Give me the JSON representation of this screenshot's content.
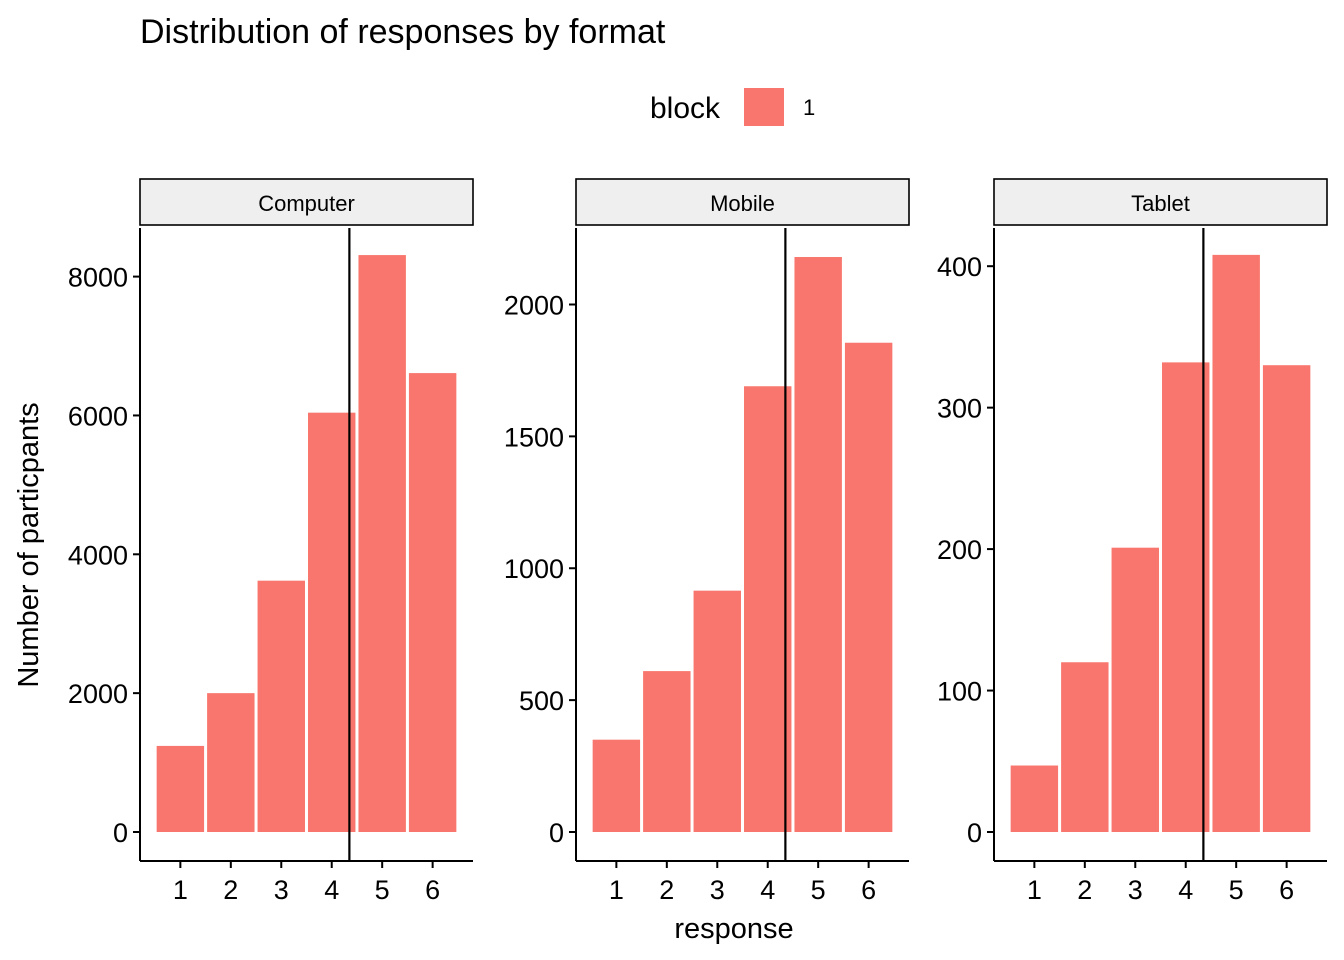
{
  "chart_data": {
    "type": "bar",
    "title": "Distribution of responses by format",
    "xlabel": "response",
    "ylabel": "Number of particpants",
    "legend": {
      "title": "block",
      "placement": "top",
      "entries": [
        {
          "label": "1",
          "color": "#F8766D"
        }
      ]
    },
    "bar_color": "#F8766D",
    "categories": [
      "1",
      "2",
      "3",
      "4",
      "5",
      "6"
    ],
    "panels": [
      {
        "name": "Computer",
        "ylim": [
          0,
          8700
        ],
        "yticks": [
          0,
          2000,
          4000,
          6000,
          8000
        ],
        "values": [
          1240,
          2000,
          3620,
          6040,
          8310,
          6610
        ],
        "vline_x": 4.35
      },
      {
        "name": "Mobile",
        "ylim": [
          0,
          2290
        ],
        "yticks": [
          0,
          500,
          1000,
          1500,
          2000
        ],
        "values": [
          350,
          610,
          915,
          1690,
          2180,
          1855
        ],
        "vline_x": 4.35
      },
      {
        "name": "Tablet",
        "ylim": [
          0,
          427
        ],
        "yticks": [
          0,
          100,
          200,
          300,
          400
        ],
        "values": [
          47,
          120,
          201,
          332,
          408,
          330
        ],
        "vline_x": 4.35
      }
    ]
  }
}
